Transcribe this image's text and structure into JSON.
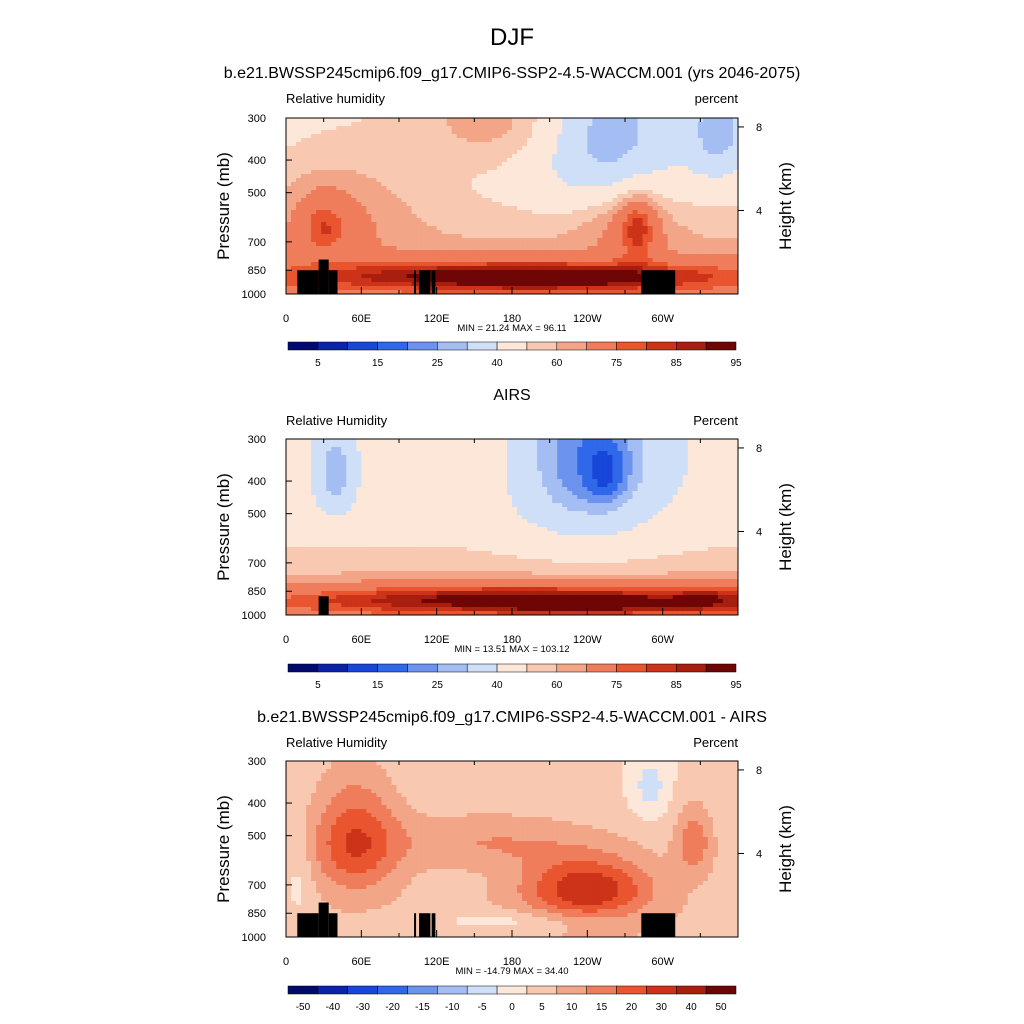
{
  "page_title": "DJF",
  "chart_data": [
    {
      "type": "heatmap",
      "title": "b.e21.BWSSP245cmip6.f09_g17.CMIP6-SSP2-4.5-WACCM.001 (yrs 2046-2075)",
      "left_label": "Relative humidity",
      "right_label": "percent",
      "ylabel": "Pressure (mb)",
      "y2label": "Height (km)",
      "yticks": [
        "300",
        "400",
        "500",
        "700",
        "850",
        "1000"
      ],
      "yticks_values": [
        300,
        400,
        500,
        700,
        850,
        1000
      ],
      "ylim": [
        1000,
        300
      ],
      "y2ticks": [
        "8",
        "4"
      ],
      "y2ticks_values": [
        8,
        4
      ],
      "xticks": [
        "0",
        "60E",
        "120E",
        "180",
        "120W",
        "60W"
      ],
      "xticks_values": [
        0,
        60,
        120,
        180,
        240,
        300
      ],
      "xlim": [
        0,
        360
      ],
      "stats": "MIN =  21.24  MAX =  96.11",
      "min": 21.24,
      "max": 96.11,
      "colorbar_labels": [
        "5",
        "15",
        "25",
        "40",
        "60",
        "75",
        "85",
        "95"
      ],
      "colors": [
        "#020a6e",
        "#0a23a8",
        "#1746d8",
        "#2f68e8",
        "#6c93ee",
        "#a4bef3",
        "#cfdff8",
        "#fde7d8",
        "#f8c9b0",
        "#f3a588",
        "#ef7d5b",
        "#e8552f",
        "#cc3318",
        "#a81e0f",
        "#6e0606"
      ],
      "palette_center": 50,
      "fields": {
        "base": [
          [
            1,
            60
          ],
          [
            1,
            55
          ],
          [
            1,
            50
          ]
        ],
        "blobs": [
          {
            "lon": 180,
            "p": 300,
            "lon_span": 80,
            "p_span": 110,
            "dv": 12
          },
          {
            "lon": 255,
            "p": 330,
            "lon_span": 55,
            "p_span": 200,
            "dv": -25
          },
          {
            "lon": 345,
            "p": 330,
            "lon_span": 25,
            "p_span": 120,
            "dv": -20
          },
          {
            "lon": 40,
            "p": 560,
            "lon_span": 60,
            "p_span": 200,
            "dv": 10
          },
          {
            "lon": 270,
            "p": 600,
            "lon_span": 40,
            "p_span": 150,
            "dv": 10
          },
          {
            "lon": 30,
            "p": 640,
            "lon_span": 18,
            "p_span": 120,
            "dv": 14
          },
          {
            "lon": 280,
            "p": 640,
            "lon_span": 15,
            "p_span": 150,
            "dv": 18
          },
          {
            "lon": 180,
            "p": 880,
            "lon_span": 200,
            "p_span": 90,
            "dv": 25
          },
          {
            "lon": 200,
            "p": 900,
            "lon_span": 80,
            "p_span": 60,
            "dv": 15
          }
        ]
      },
      "topography": [
        [
          9,
          850
        ],
        [
          26,
          850
        ],
        [
          26,
          790
        ],
        [
          34,
          790
        ],
        [
          34,
          850
        ],
        [
          41,
          850
        ],
        [
          102,
          850
        ],
        [
          103,
          850
        ],
        [
          106,
          850
        ],
        [
          115,
          850
        ],
        [
          116,
          850
        ],
        [
          119,
          850
        ],
        [
          283,
          850
        ],
        [
          310,
          850
        ]
      ]
    },
    {
      "type": "heatmap",
      "title": "AIRS",
      "left_label": "Relative Humidity",
      "right_label": "Percent",
      "ylabel": "Pressure (mb)",
      "y2label": "Height (km)",
      "yticks": [
        "300",
        "400",
        "500",
        "700",
        "850",
        "1000"
      ],
      "yticks_values": [
        300,
        400,
        500,
        700,
        850,
        1000
      ],
      "ylim": [
        1000,
        300
      ],
      "y2ticks": [
        "8",
        "4"
      ],
      "y2ticks_values": [
        8,
        4
      ],
      "xticks": [
        "0",
        "60E",
        "120E",
        "180",
        "120W",
        "60W"
      ],
      "xticks_values": [
        0,
        60,
        120,
        180,
        240,
        300
      ],
      "xlim": [
        0,
        360
      ],
      "stats": "MIN =  13.51  MAX = 103.12",
      "min": 13.51,
      "max": 103.12,
      "colorbar_labels": [
        "5",
        "15",
        "25",
        "40",
        "60",
        "75",
        "85",
        "95"
      ],
      "colors": [
        "#020a6e",
        "#0a23a8",
        "#1746d8",
        "#2f68e8",
        "#6c93ee",
        "#a4bef3",
        "#cfdff8",
        "#fde7d8",
        "#f8c9b0",
        "#f3a588",
        "#ef7d5b",
        "#e8552f",
        "#cc3318",
        "#a81e0f",
        "#6e0606"
      ],
      "palette_center": 50,
      "fields": {
        "base": [
          [
            1,
            50
          ],
          [
            1,
            45
          ],
          [
            1,
            45
          ]
        ],
        "blobs": [
          {
            "lon": 40,
            "p": 380,
            "lon_span": 18,
            "p_span": 130,
            "dv": -20
          },
          {
            "lon": 240,
            "p": 350,
            "lon_span": 60,
            "p_span": 230,
            "dv": -25
          },
          {
            "lon": 255,
            "p": 380,
            "lon_span": 15,
            "p_span": 80,
            "dv": -10
          },
          {
            "lon": 130,
            "p": 350,
            "lon_span": 80,
            "p_span": 120,
            "dv": 5
          },
          {
            "lon": 175,
            "p": 900,
            "lon_span": 180,
            "p_span": 90,
            "dv": 30
          },
          {
            "lon": 240,
            "p": 930,
            "lon_span": 60,
            "p_span": 60,
            "dv": 15
          },
          {
            "lon": 340,
            "p": 900,
            "lon_span": 40,
            "p_span": 90,
            "dv": 15
          }
        ]
      },
      "topography": [
        [
          26,
          880
        ],
        [
          34,
          880
        ]
      ]
    },
    {
      "type": "heatmap",
      "title": "b.e21.BWSSP245cmip6.f09_g17.CMIP6-SSP2-4.5-WACCM.001 - AIRS",
      "left_label": "Relative Humidity",
      "right_label": "Percent",
      "ylabel": "Pressure (mb)",
      "y2label": "Height (km)",
      "yticks": [
        "300",
        "400",
        "500",
        "700",
        "850",
        "1000"
      ],
      "yticks_values": [
        300,
        400,
        500,
        700,
        850,
        1000
      ],
      "ylim": [
        1000,
        300
      ],
      "y2ticks": [
        "8",
        "4"
      ],
      "y2ticks_values": [
        8,
        4
      ],
      "xticks": [
        "0",
        "60E",
        "120E",
        "180",
        "120W",
        "60W"
      ],
      "xticks_values": [
        0,
        60,
        120,
        180,
        240,
        300
      ],
      "xlim": [
        0,
        360
      ],
      "stats": "MIN = -14.79  MAX =  34.40",
      "min": -14.79,
      "max": 34.4,
      "colorbar_labels": [
        "-50",
        "-40",
        "-30",
        "-20",
        "-15",
        "-10",
        "-5",
        "0",
        "5",
        "10",
        "15",
        "20",
        "30",
        "40",
        "50"
      ],
      "colors": [
        "#020a6e",
        "#0a23a8",
        "#1746d8",
        "#2f68e8",
        "#6c93ee",
        "#a4bef3",
        "#cfdff8",
        "#fde7d8",
        "#f8c9b0",
        "#f3a588",
        "#ef7d5b",
        "#e8552f",
        "#cc3318",
        "#a81e0f",
        "#6e0606"
      ],
      "palette_center": 0,
      "fields": {
        "base": [
          [
            1,
            2
          ],
          [
            1,
            2
          ],
          [
            1,
            2
          ]
        ],
        "blobs": [
          {
            "lon": 55,
            "p": 520,
            "lon_span": 35,
            "p_span": 200,
            "dv": 18
          },
          {
            "lon": 240,
            "p": 720,
            "lon_span": 50,
            "p_span": 150,
            "dv": 22
          },
          {
            "lon": 160,
            "p": 520,
            "lon_span": 80,
            "p_span": 100,
            "dv": 8
          },
          {
            "lon": 325,
            "p": 520,
            "lon_span": 15,
            "p_span": 120,
            "dv": 12
          },
          {
            "lon": 290,
            "p": 360,
            "lon_span": 15,
            "p_span": 80,
            "dv": -8
          },
          {
            "lon": 170,
            "p": 900,
            "lon_span": 60,
            "p_span": 60,
            "dv": -6
          },
          {
            "lon": 10,
            "p": 700,
            "lon_span": 12,
            "p_span": 200,
            "dv": -5
          }
        ]
      },
      "topography": [
        [
          9,
          850
        ],
        [
          26,
          850
        ],
        [
          26,
          790
        ],
        [
          34,
          790
        ],
        [
          34,
          850
        ],
        [
          41,
          850
        ],
        [
          102,
          850
        ],
        [
          103,
          850
        ],
        [
          106,
          850
        ],
        [
          115,
          850
        ],
        [
          116,
          850
        ],
        [
          119,
          850
        ],
        [
          283,
          850
        ],
        [
          310,
          850
        ]
      ]
    }
  ]
}
